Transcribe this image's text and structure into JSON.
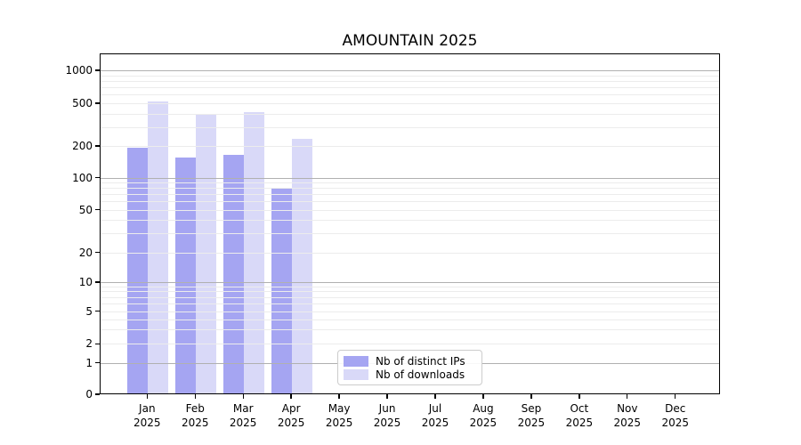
{
  "title": "AMOUNTAIN 2025",
  "colors": {
    "distinct_ips": "#a5a5f2",
    "downloads": "#d9d9f8",
    "grid_major": "#b0b0b0",
    "grid_minor": "#ececec",
    "axis": "#000000"
  },
  "legend": {
    "items": [
      {
        "label": "Nb of distinct IPs",
        "color": "#a5a5f2"
      },
      {
        "label": "Nb of downloads",
        "color": "#d9d9f8"
      }
    ]
  },
  "chart_data": {
    "type": "bar",
    "title": "AMOUNTAIN 2025",
    "categories": [
      {
        "month": "Jan",
        "year": "2025"
      },
      {
        "month": "Feb",
        "year": "2025"
      },
      {
        "month": "Mar",
        "year": "2025"
      },
      {
        "month": "Apr",
        "year": "2025"
      },
      {
        "month": "May",
        "year": "2025"
      },
      {
        "month": "Jun",
        "year": "2025"
      },
      {
        "month": "Jul",
        "year": "2025"
      },
      {
        "month": "Aug",
        "year": "2025"
      },
      {
        "month": "Sep",
        "year": "2025"
      },
      {
        "month": "Oct",
        "year": "2025"
      },
      {
        "month": "Nov",
        "year": "2025"
      },
      {
        "month": "Dec",
        "year": "2025"
      }
    ],
    "series": [
      {
        "name": "Nb of distinct IPs",
        "color": "#a5a5f2",
        "values": [
          193,
          156,
          165,
          81,
          0,
          0,
          0,
          0,
          0,
          0,
          0,
          0
        ]
      },
      {
        "name": "Nb of downloads",
        "color": "#d9d9f8",
        "values": [
          515,
          400,
          410,
          235,
          0,
          0,
          0,
          0,
          0,
          0,
          0,
          0
        ]
      }
    ],
    "xlabel": "",
    "ylabel": "",
    "yscale": "symlog",
    "yticks": [
      0,
      1,
      2,
      5,
      10,
      20,
      50,
      100,
      200,
      500,
      1000
    ],
    "ylim": [
      0,
      1440
    ],
    "grid": true,
    "legend_position": "lower center-left inside plot"
  }
}
